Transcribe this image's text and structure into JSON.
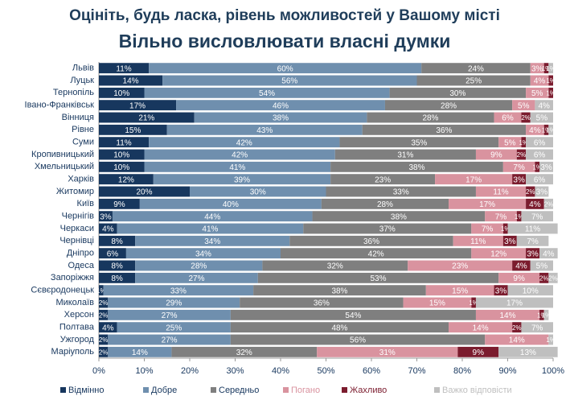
{
  "chart_data": {
    "type": "stacked-bar-horizontal",
    "title": "Оцініть, будь ласка, рівень можливостей у Вашому місті",
    "subtitle": "Вільно висловлювати власні думки",
    "categories": [
      "Львів",
      "Луцьк",
      "Тернопіль",
      "Івано-Франківськ",
      "Вінниця",
      "Рівне",
      "Суми",
      "Кропивницький",
      "Хмельницький",
      "Харків",
      "Житомир",
      "Київ",
      "Чернігів",
      "Черкаси",
      "Чернівці",
      "Дніпро",
      "Одеса",
      "Запоріжжя",
      "Сєвєродонецьк",
      "Миколаїв",
      "Херсон",
      "Полтава",
      "Ужгород",
      "Маріуполь"
    ],
    "series": [
      {
        "name": "Відмінно",
        "color": "#17375e",
        "values": [
          11,
          14,
          10,
          17,
          21,
          15,
          11,
          10,
          10,
          12,
          20,
          9,
          3,
          4,
          8,
          6,
          8,
          8,
          1,
          2,
          2,
          4,
          2,
          2
        ],
        "value_labels": [
          "11%",
          "14%",
          "10%",
          "17%",
          "21%",
          "15%",
          "11%",
          "10%",
          "10%",
          "12%",
          "20%",
          "9%",
          "3%",
          "4%",
          "8%",
          "6%",
          "8%",
          "8%",
          "1%",
          "2%",
          "2%",
          "4%",
          "2%",
          "2%"
        ]
      },
      {
        "name": "Добре",
        "color": "#6f8fae",
        "values": [
          60,
          56,
          54,
          46,
          38,
          43,
          42,
          42,
          41,
          39,
          30,
          40,
          44,
          41,
          34,
          34,
          28,
          27,
          33,
          29,
          27,
          25,
          27,
          14
        ],
        "value_labels": [
          "60%",
          "56%",
          "54%",
          "46%",
          "38%",
          "43%",
          "42%",
          "42%",
          "41%",
          "39%",
          "30%",
          "40%",
          "44%",
          "41%",
          "34%",
          "34%",
          "28%",
          "27%",
          "33%",
          "29%",
          "27%",
          "25%",
          "27%",
          "14%"
        ]
      },
      {
        "name": "Середньо",
        "color": "#7f7f7f",
        "values": [
          24,
          25,
          30,
          28,
          28,
          36,
          35,
          31,
          38,
          23,
          33,
          28,
          38,
          37,
          36,
          42,
          32,
          53,
          38,
          36,
          54,
          48,
          56,
          32
        ],
        "value_labels": [
          "24%",
          "25%",
          "30%",
          "28%",
          "28%",
          "36%",
          "35%",
          "31%",
          "38%",
          "23%",
          "33%",
          "28%",
          "38%",
          "37%",
          "36%",
          "42%",
          "32%",
          "53%",
          "38%",
          "36%",
          "54%",
          "48%",
          "56%",
          "32%"
        ]
      },
      {
        "name": "Погано",
        "color": "#d9939f",
        "values": [
          3,
          4,
          5,
          5,
          6,
          4,
          5,
          9,
          7,
          17,
          11,
          17,
          7,
          7,
          11,
          12,
          23,
          9,
          15,
          15,
          14,
          14,
          14,
          31
        ],
        "value_labels": [
          "3%",
          "4%",
          "5%",
          "5%",
          "6%",
          "4%",
          "5%",
          "9%",
          "7%",
          "17%",
          "11%",
          "17%",
          "7%",
          "7%",
          "11%",
          "12%",
          "23%",
          "9%",
          "15%",
          "15%",
          "14%",
          "14%",
          "14%",
          "31%"
        ]
      },
      {
        "name": "Жахливо",
        "color": "#7b1c2e",
        "values": [
          1,
          1,
          1,
          0,
          2,
          1,
          1,
          2,
          1,
          3,
          2,
          4,
          1,
          1,
          3,
          3,
          4,
          2,
          3,
          1,
          1,
          2,
          0,
          9
        ],
        "value_labels": [
          "1%",
          "1%",
          "1%",
          null,
          "2%",
          "1%",
          "1%",
          "2%",
          "1%",
          "3%",
          "2%",
          "4%",
          "1%",
          "1%",
          "3%",
          "3%",
          "4%",
          "2%",
          "3%",
          "1%",
          "1%",
          "2%",
          null,
          "9%"
        ]
      },
      {
        "name": "Важко відповісти",
        "color": "#bfbfbf",
        "values": [
          1,
          0,
          0,
          4,
          5,
          1,
          6,
          6,
          3,
          6,
          3,
          2,
          7,
          11,
          7,
          4,
          5,
          2,
          10,
          17,
          1,
          7,
          1,
          13
        ],
        "value_labels": [
          "1%",
          null,
          null,
          "4%",
          "5%",
          "1%",
          "6%",
          "6%",
          "3%",
          "6%",
          "3%",
          "2%",
          "7%",
          "11%",
          "7%",
          "4%",
          "5%",
          "2%",
          "10%",
          "17%",
          "1%",
          "7%",
          "1%",
          "13%"
        ]
      }
    ],
    "xlim": [
      0,
      100
    ],
    "xticks": [
      {
        "value": 0,
        "label": "0%"
      },
      {
        "value": 10,
        "label": "10%"
      },
      {
        "value": 20,
        "label": "20%"
      },
      {
        "value": 30,
        "label": "30%"
      },
      {
        "value": 40,
        "label": "40%"
      },
      {
        "value": 50,
        "label": "50%"
      },
      {
        "value": 60,
        "label": "60%"
      },
      {
        "value": 70,
        "label": "70%"
      },
      {
        "value": 80,
        "label": "80%"
      },
      {
        "value": 90,
        "label": "90%"
      },
      {
        "value": 100,
        "label": "100%"
      }
    ],
    "legend": "bottom"
  }
}
